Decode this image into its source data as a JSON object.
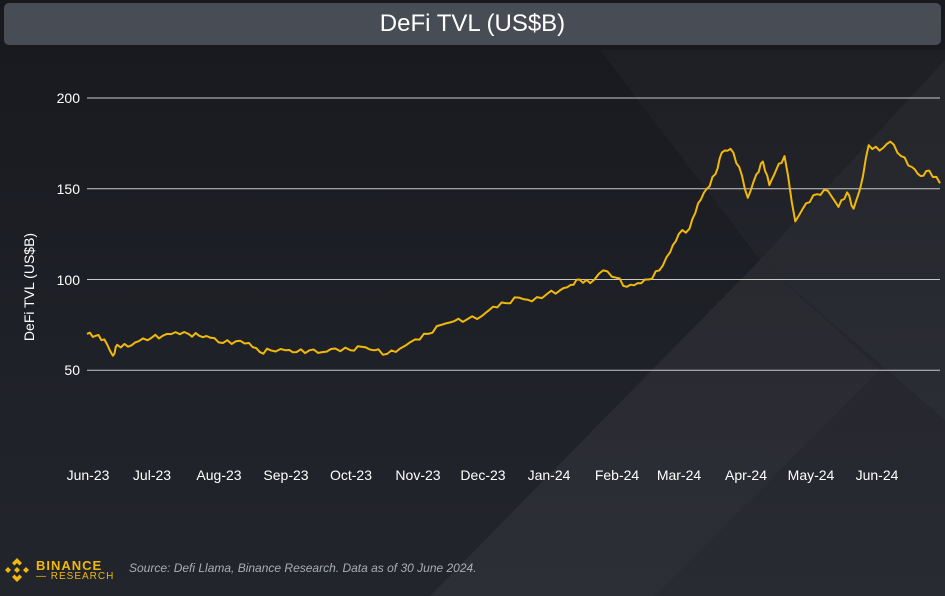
{
  "title": "DeFi TVL (US$B)",
  "footer": {
    "logo_top": "BINANCE",
    "logo_bottom": "RESEARCH",
    "source": "Source: Defi Llama, Binance Research. Data as of 30 June 2024."
  },
  "colors": {
    "line": "#f0b90b",
    "background": "#1e2026",
    "title_bar": "#474c55",
    "grid": "#c8c8c8"
  },
  "chart_data": {
    "type": "line",
    "title": "DeFi TVL (US$B)",
    "xlabel": "",
    "ylabel": "DeFi TVL (US$B)",
    "ylim": [
      0,
      220
    ],
    "yticks": [
      50,
      100,
      150,
      200
    ],
    "grid": "horizontal",
    "legend": "none",
    "x_ticks": [
      "Jun-23",
      "Jul-23",
      "Aug-23",
      "Sep-23",
      "Oct-23",
      "Nov-23",
      "Dec-23",
      "Jan-24",
      "Feb-24",
      "Mar-24",
      "Apr-24",
      "May-24",
      "Jun-24"
    ],
    "series": [
      {
        "name": "DeFi TVL",
        "x": [
          "2023-06-01",
          "2023-06-05",
          "2023-06-09",
          "2023-06-13",
          "2023-06-15",
          "2023-06-20",
          "2023-06-25",
          "2023-07-01",
          "2023-07-06",
          "2023-07-12",
          "2023-07-18",
          "2023-07-23",
          "2023-07-28",
          "2023-08-03",
          "2023-08-09",
          "2023-08-15",
          "2023-08-20",
          "2023-08-25",
          "2023-09-01",
          "2023-09-06",
          "2023-09-12",
          "2023-09-18",
          "2023-09-24",
          "2023-10-01",
          "2023-10-06",
          "2023-10-12",
          "2023-10-18",
          "2023-10-24",
          "2023-10-31",
          "2023-11-06",
          "2023-11-12",
          "2023-11-18",
          "2023-11-24",
          "2023-12-01",
          "2023-12-06",
          "2023-12-12",
          "2023-12-18",
          "2023-12-24",
          "2023-12-31",
          "2024-01-06",
          "2024-01-11",
          "2024-01-15",
          "2024-01-20",
          "2024-01-26",
          "2024-02-01",
          "2024-02-06",
          "2024-02-11",
          "2024-02-16",
          "2024-02-21",
          "2024-02-26",
          "2024-03-01",
          "2024-03-06",
          "2024-03-10",
          "2024-03-14",
          "2024-03-18",
          "2024-03-21",
          "2024-03-25",
          "2024-03-29",
          "2024-04-02",
          "2024-04-06",
          "2024-04-09",
          "2024-04-12",
          "2024-04-15",
          "2024-04-19",
          "2024-04-24",
          "2024-04-29",
          "2024-05-04",
          "2024-05-09",
          "2024-05-14",
          "2024-05-18",
          "2024-05-21",
          "2024-05-24",
          "2024-05-28",
          "2024-06-02",
          "2024-06-07",
          "2024-06-12",
          "2024-06-17",
          "2024-06-21",
          "2024-06-25",
          "2024-06-30"
        ],
        "values": [
          70,
          69,
          67,
          58,
          64,
          63,
          66,
          68,
          69,
          71,
          70,
          69,
          68,
          65,
          66,
          65,
          60,
          61,
          61,
          60,
          61,
          60,
          62,
          61,
          63,
          61,
          59,
          62,
          67,
          70,
          75,
          77,
          78,
          80,
          85,
          87,
          90,
          88,
          92,
          94,
          97,
          100,
          98,
          105,
          101,
          96,
          98,
          100,
          105,
          115,
          125,
          128,
          142,
          150,
          158,
          170,
          172,
          162,
          145,
          158,
          165,
          152,
          160,
          168,
          132,
          142,
          147,
          149,
          140,
          148,
          139,
          150,
          174,
          171,
          176,
          168,
          162,
          157,
          160,
          153
        ]
      }
    ]
  }
}
